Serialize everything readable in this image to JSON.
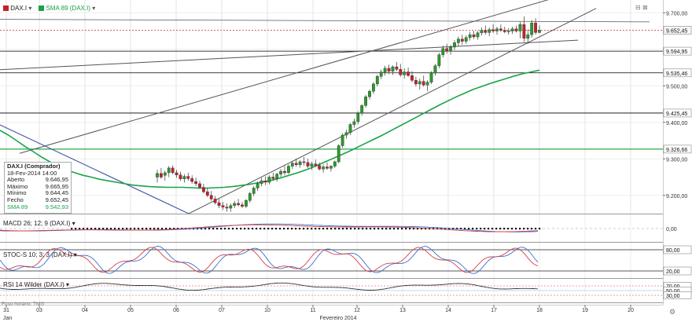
{
  "main_header": {
    "symbol": "DAX.I",
    "sma_label": "SMA 89 (DAX.I)"
  },
  "macd_header": "MACD 26; 12; 9 (DAX.I)",
  "stoch_header": "STOC-S 10; 3; 3 (DAX.I)",
  "rsi_header": "RSI 14 Wilder (DAX.I)",
  "footer_note": "Fuso horário: TMG",
  "infobox": {
    "title": "DAX.I (Comprador)",
    "date": "18-Fev-2014 14:00",
    "rows": [
      {
        "k": "Aberto",
        "v": "9.646,95"
      },
      {
        "k": "Máximo",
        "v": "9.665,95"
      },
      {
        "k": "Mínimo",
        "v": "9.644,45"
      },
      {
        "k": "Fecho",
        "v": "9.652,45"
      },
      {
        "k": "SMA 89",
        "v": "9.542,93"
      }
    ]
  },
  "chart_data": {
    "type": "candlestick",
    "instrument": "DAX.I",
    "timeframe": "hourly",
    "x_ticks": [
      "31",
      "03",
      "04",
      "05",
      "06",
      "07",
      "10",
      "11",
      "12",
      "13",
      "14",
      "17",
      "18",
      "19",
      "20"
    ],
    "x_month_labels": [
      "Jan",
      "Fevereiro 2014"
    ],
    "y_ticks": [
      "9.700,00",
      "9.600,00",
      "9.500,00",
      "9.400,00",
      "9.300,00",
      "9.200,00"
    ],
    "ylim": [
      9150,
      9735
    ],
    "price_levels": [
      "9.652,45",
      "9.594,95",
      "9.535,46",
      "9.425,45",
      "9.326,66"
    ],
    "current_price": "9.652,45",
    "colors": {
      "up": "#2a9b2a",
      "down": "#c8202a",
      "sma": "#1aa24a",
      "level_line": "#000000",
      "current_line": "#c03030",
      "green_level": "#2aa84a",
      "trend": "#555555",
      "blue_trend": "#4a5aa8"
    },
    "candles": [
      [
        9250,
        9270,
        9235,
        9260
      ],
      [
        9260,
        9275,
        9245,
        9250
      ],
      [
        9255,
        9268,
        9240,
        9262
      ],
      [
        9262,
        9280,
        9250,
        9275
      ],
      [
        9275,
        9282,
        9258,
        9262
      ],
      [
        9262,
        9270,
        9248,
        9256
      ],
      [
        9256,
        9265,
        9240,
        9245
      ],
      [
        9245,
        9258,
        9235,
        9252
      ],
      [
        9252,
        9262,
        9240,
        9246
      ],
      [
        9246,
        9255,
        9232,
        9238
      ],
      [
        9238,
        9248,
        9225,
        9232
      ],
      [
        9232,
        9240,
        9218,
        9222
      ],
      [
        9222,
        9232,
        9205,
        9210
      ],
      [
        9210,
        9220,
        9195,
        9200
      ],
      [
        9200,
        9212,
        9185,
        9190
      ],
      [
        9190,
        9198,
        9175,
        9180
      ],
      [
        9180,
        9190,
        9165,
        9172
      ],
      [
        9172,
        9182,
        9160,
        9168
      ],
      [
        9168,
        9178,
        9155,
        9165
      ],
      [
        9165,
        9178,
        9155,
        9172
      ],
      [
        9172,
        9185,
        9165,
        9178
      ],
      [
        9178,
        9190,
        9170,
        9174
      ],
      [
        9174,
        9182,
        9165,
        9170
      ],
      [
        9170,
        9190,
        9165,
        9186
      ],
      [
        9186,
        9210,
        9180,
        9205
      ],
      [
        9205,
        9225,
        9198,
        9220
      ],
      [
        9220,
        9238,
        9212,
        9232
      ],
      [
        9232,
        9248,
        9225,
        9240
      ],
      [
        9240,
        9252,
        9228,
        9236
      ],
      [
        9236,
        9255,
        9230,
        9250
      ],
      [
        9250,
        9262,
        9240,
        9246
      ],
      [
        9246,
        9262,
        9238,
        9258
      ],
      [
        9258,
        9272,
        9250,
        9266
      ],
      [
        9266,
        9280,
        9255,
        9262
      ],
      [
        9262,
        9285,
        9258,
        9280
      ],
      [
        9280,
        9295,
        9272,
        9288
      ],
      [
        9288,
        9300,
        9278,
        9284
      ],
      [
        9284,
        9296,
        9276,
        9292
      ],
      [
        9292,
        9305,
        9282,
        9290
      ],
      [
        9290,
        9300,
        9275,
        9280
      ],
      [
        9280,
        9292,
        9270,
        9286
      ],
      [
        9286,
        9298,
        9278,
        9282
      ],
      [
        9282,
        9290,
        9268,
        9272
      ],
      [
        9272,
        9285,
        9262,
        9278
      ],
      [
        9278,
        9290,
        9270,
        9274
      ],
      [
        9274,
        9282,
        9265,
        9280
      ],
      [
        9280,
        9295,
        9275,
        9292
      ],
      [
        9292,
        9340,
        9288,
        9336
      ],
      [
        9336,
        9370,
        9330,
        9365
      ],
      [
        9365,
        9380,
        9355,
        9372
      ],
      [
        9372,
        9398,
        9365,
        9394
      ],
      [
        9394,
        9410,
        9385,
        9402
      ],
      [
        9402,
        9430,
        9395,
        9425
      ],
      [
        9425,
        9450,
        9418,
        9446
      ],
      [
        9446,
        9475,
        9440,
        9470
      ],
      [
        9470,
        9490,
        9462,
        9485
      ],
      [
        9485,
        9510,
        9478,
        9505
      ],
      [
        9505,
        9530,
        9498,
        9526
      ],
      [
        9526,
        9545,
        9518,
        9538
      ],
      [
        9538,
        9555,
        9528,
        9548
      ],
      [
        9548,
        9558,
        9532,
        9540
      ],
      [
        9540,
        9556,
        9530,
        9552
      ],
      [
        9552,
        9565,
        9540,
        9545
      ],
      [
        9545,
        9560,
        9525,
        9530
      ],
      [
        9530,
        9548,
        9520,
        9538
      ],
      [
        9538,
        9550,
        9525,
        9528
      ],
      [
        9528,
        9540,
        9510,
        9515
      ],
      [
        9515,
        9525,
        9498,
        9505
      ],
      [
        9505,
        9520,
        9490,
        9512
      ],
      [
        9512,
        9528,
        9498,
        9502
      ],
      [
        9502,
        9515,
        9485,
        9510
      ],
      [
        9510,
        9540,
        9505,
        9535
      ],
      [
        9535,
        9560,
        9528,
        9555
      ],
      [
        9555,
        9590,
        9548,
        9585
      ],
      [
        9585,
        9610,
        9578,
        9602
      ],
      [
        9602,
        9615,
        9588,
        9595
      ],
      [
        9595,
        9612,
        9585,
        9606
      ],
      [
        9606,
        9625,
        9598,
        9618
      ],
      [
        9618,
        9635,
        9608,
        9628
      ],
      [
        9628,
        9640,
        9612,
        9622
      ],
      [
        9622,
        9638,
        9615,
        9632
      ],
      [
        9632,
        9648,
        9624,
        9640
      ],
      [
        9640,
        9650,
        9628,
        9634
      ],
      [
        9634,
        9650,
        9626,
        9645
      ],
      [
        9645,
        9660,
        9638,
        9652
      ],
      [
        9652,
        9665,
        9640,
        9646
      ],
      [
        9646,
        9660,
        9636,
        9654
      ],
      [
        9654,
        9668,
        9645,
        9650
      ],
      [
        9650,
        9662,
        9640,
        9656
      ],
      [
        9656,
        9668,
        9648,
        9652
      ],
      [
        9652,
        9662,
        9644,
        9648
      ],
      [
        9648,
        9658,
        9640,
        9650
      ],
      [
        9650,
        9662,
        9642,
        9656
      ],
      [
        9656,
        9665,
        9646,
        9650
      ],
      [
        9650,
        9675,
        9630,
        9668
      ],
      [
        9668,
        9690,
        9620,
        9630
      ],
      [
        9630,
        9655,
        9615,
        9640
      ],
      [
        9640,
        9680,
        9632,
        9672
      ],
      [
        9672,
        9685,
        9640,
        9646
      ],
      [
        9646,
        9665,
        9644,
        9652
      ]
    ],
    "sma89": [
      9378,
      9365,
      9350,
      9334,
      9320,
      9305,
      9292,
      9280,
      9270,
      9262,
      9255,
      9250,
      9244,
      9240,
      9236,
      9232,
      9228,
      9226,
      9224,
      9223,
      9222,
      9222,
      9222,
      9221,
      9220,
      9220,
      9221,
      9222,
      9224,
      9227,
      9230,
      9234,
      9238,
      9243,
      9249,
      9256,
      9263,
      9271,
      9280,
      9290,
      9300,
      9310,
      9320,
      9331,
      9342,
      9353,
      9364,
      9376,
      9388,
      9400,
      9412,
      9424,
      9436,
      9448,
      9459,
      9470,
      9480,
      9490,
      9498,
      9506,
      9513,
      9520,
      9527,
      9533,
      9538,
      9543
    ],
    "horizontal_lines": [
      9652.45,
      9594.95,
      9535.46,
      9425.45,
      9326.66
    ],
    "macd": {
      "ylim": [
        -1,
        1
      ],
      "y_ticks": [
        "0,00"
      ]
    },
    "stochastic": {
      "ylim": [
        0,
        100
      ],
      "y_ticks": [
        "80,00",
        "20,00"
      ],
      "levels": [
        80,
        20
      ]
    },
    "rsi": {
      "ylim": [
        0,
        100
      ],
      "y_ticks": [
        "70,00",
        "50,00",
        "30,00"
      ],
      "levels": [
        70,
        50,
        30
      ]
    }
  }
}
